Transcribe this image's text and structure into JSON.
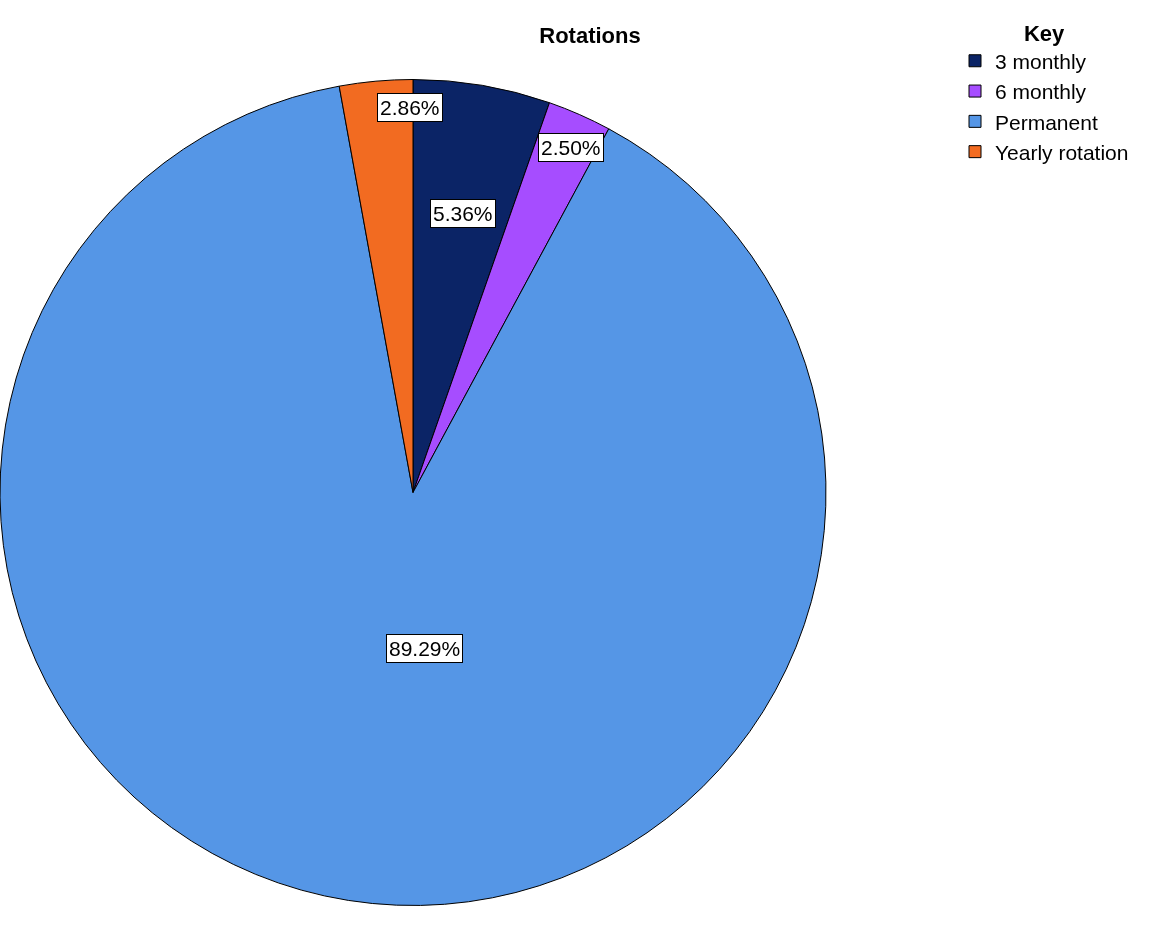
{
  "chart_data": {
    "type": "pie",
    "title": "Rotations",
    "legend_title": "Key",
    "legend": "top right",
    "categories": [
      "3 monthly",
      "6 monthly",
      "Permanent",
      "Yearly rotation"
    ],
    "values": [
      5.36,
      2.5,
      89.29,
      2.86
    ],
    "colors": [
      "#0b2466",
      "#a64dff",
      "#5596e6",
      "#f26b21"
    ],
    "value_labels": [
      "5.36%",
      "2.50%",
      "89.29%",
      "2.86%"
    ]
  }
}
